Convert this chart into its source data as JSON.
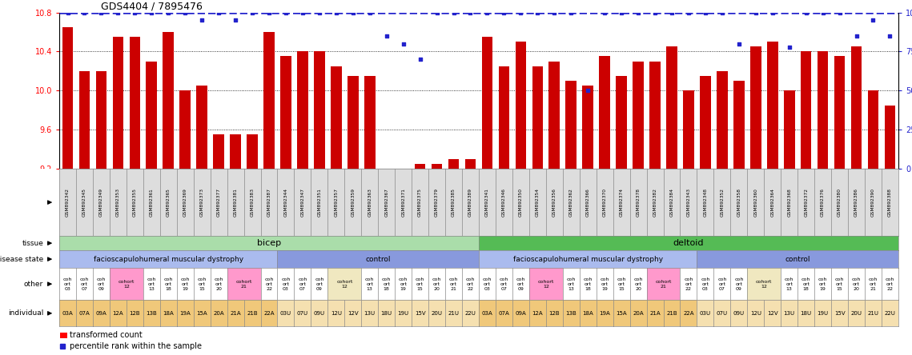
{
  "title": "GDS4404 / 7895476",
  "n_samples": 50,
  "n_bicep_fshd": 13,
  "n_bicep_ctrl": 12,
  "n_deltoid_fshd": 13,
  "n_deltoid_ctrl": 12,
  "bar_heights": [
    10.65,
    10.2,
    10.2,
    10.55,
    10.55,
    10.3,
    10.6,
    10.0,
    10.05,
    9.55,
    9.55,
    9.55,
    10.6,
    10.35,
    10.4,
    10.4,
    10.25,
    10.15,
    10.15,
    9.15,
    9.15,
    9.25,
    9.25,
    9.3,
    9.3,
    10.55,
    10.25,
    10.5,
    10.25,
    10.3,
    10.1,
    10.05,
    10.35,
    10.15,
    10.3,
    10.3,
    10.45,
    10.0,
    10.15,
    10.2,
    10.1,
    10.45,
    10.5,
    10.0,
    10.4,
    10.4,
    10.35,
    10.45,
    10.0,
    9.85
  ],
  "percentile": [
    100,
    100,
    100,
    100,
    100,
    100,
    100,
    100,
    95,
    100,
    95,
    100,
    100,
    100,
    100,
    100,
    100,
    100,
    100,
    85,
    80,
    70,
    100,
    100,
    100,
    100,
    100,
    100,
    100,
    100,
    100,
    50,
    100,
    100,
    100,
    100,
    100,
    100,
    100,
    100,
    80,
    100,
    100,
    78,
    100,
    100,
    100,
    85,
    95,
    85
  ],
  "gsm_labels": [
    "GSM892342",
    "GSM892345",
    "GSM892349",
    "GSM892353",
    "GSM892355",
    "GSM892361",
    "GSM892365",
    "GSM892369",
    "GSM892373",
    "GSM892377",
    "GSM892381",
    "GSM892383",
    "GSM892387",
    "GSM892344",
    "GSM892347",
    "GSM892351",
    "GSM892357",
    "GSM892359",
    "GSM892363",
    "GSM892367",
    "GSM892371",
    "GSM892375",
    "GSM892379",
    "GSM892385",
    "GSM892389",
    "GSM892341",
    "GSM892346",
    "GSM892350",
    "GSM892354",
    "GSM892356",
    "GSM892362",
    "GSM892366",
    "GSM892370",
    "GSM892374",
    "GSM892378",
    "GSM892382",
    "GSM892384",
    "GSM892343",
    "GSM892348",
    "GSM892352",
    "GSM892358",
    "GSM892360",
    "GSM892364",
    "GSM892368",
    "GSM892372",
    "GSM892376",
    "GSM892380",
    "GSM892386",
    "GSM892390",
    "GSM892388"
  ],
  "ymin": 9.2,
  "ymax": 10.8,
  "yticks_left": [
    9.2,
    9.6,
    10.0,
    10.4,
    10.8
  ],
  "yticks_right": [
    0,
    25,
    50,
    75,
    100
  ],
  "bar_color": "#cc0000",
  "dot_color": "#2222cc",
  "tissue_bicep_color": "#aaddaa",
  "tissue_deltoid_color": "#55bb55",
  "disease_fshd_color": "#aabbee",
  "disease_ctrl_color": "#8899dd",
  "cohort12_color": "#ff99cc",
  "cohort21_color": "#ff99cc",
  "other_color": "#ffffff",
  "indiv_fshd_color": "#f0c87a",
  "indiv_ctrl_color": "#f5e0b0",
  "cohort12_ctrl_color": "#f0e8c0",
  "indiv_bicep_fshd": [
    "03A",
    "07A",
    "09A",
    "12A",
    "12B",
    "13B",
    "18A",
    "19A",
    "15A",
    "20A",
    "21A",
    "21B",
    "22A"
  ],
  "indiv_bicep_ctrl": [
    "03U",
    "07U",
    "09U",
    "12U",
    "12V",
    "13U",
    "18U",
    "19U",
    "15V",
    "20U",
    "21U",
    "22U"
  ],
  "indiv_deltoid_fshd": [
    "03A",
    "07A",
    "09A",
    "12A",
    "12B",
    "13B",
    "18A",
    "19A",
    "15A",
    "20A",
    "21A",
    "21B",
    "22A"
  ],
  "indiv_deltoid_ctrl": [
    "03U",
    "07U",
    "09U",
    "12U",
    "12V",
    "13U",
    "18U",
    "19U",
    "15V",
    "20U",
    "21U",
    "22U"
  ],
  "cohort_bicep_fshd": [
    [
      1,
      "#ffffff",
      "coh\nort\n03"
    ],
    [
      1,
      "#ffffff",
      "coh\nort\n07"
    ],
    [
      1,
      "#ffffff",
      "coh\nort\n09"
    ],
    [
      2,
      "#ff99cc",
      "cohort\n12"
    ],
    [
      1,
      "#ffffff",
      "coh\nort\n13"
    ],
    [
      1,
      "#ffffff",
      "coh\nort\n18"
    ],
    [
      1,
      "#ffffff",
      "coh\nort\n19"
    ],
    [
      1,
      "#ffffff",
      "coh\nort\n15"
    ],
    [
      1,
      "#ffffff",
      "coh\nort\n20"
    ],
    [
      2,
      "#ff99cc",
      "cohort\n21"
    ],
    [
      1,
      "#ffffff",
      "coh\nort\n22"
    ]
  ],
  "cohort_bicep_ctrl": [
    [
      1,
      "#ffffff",
      "coh\nort\n03"
    ],
    [
      1,
      "#ffffff",
      "coh\nort\n07"
    ],
    [
      1,
      "#ffffff",
      "coh\nort\n09"
    ],
    [
      2,
      "#f0e8c0",
      "cohort\n12"
    ],
    [
      1,
      "#ffffff",
      "coh\nort\n13"
    ],
    [
      1,
      "#ffffff",
      "coh\nort\n18"
    ],
    [
      1,
      "#ffffff",
      "coh\nort\n19"
    ],
    [
      1,
      "#ffffff",
      "coh\nort\n15"
    ],
    [
      1,
      "#ffffff",
      "coh\nort\n20"
    ],
    [
      1,
      "#ffffff",
      "coh\nort\n21"
    ],
    [
      1,
      "#ffffff",
      "coh\nort\n22"
    ]
  ],
  "cohort_deltoid_fshd": [
    [
      1,
      "#ffffff",
      "coh\nort\n03"
    ],
    [
      1,
      "#ffffff",
      "coh\nort\n07"
    ],
    [
      1,
      "#ffffff",
      "coh\nort\n09"
    ],
    [
      2,
      "#ff99cc",
      "cohort\n12"
    ],
    [
      1,
      "#ffffff",
      "coh\nort\n13"
    ],
    [
      1,
      "#ffffff",
      "coh\nort\n18"
    ],
    [
      1,
      "#ffffff",
      "coh\nort\n19"
    ],
    [
      1,
      "#ffffff",
      "coh\nort\n15"
    ],
    [
      1,
      "#ffffff",
      "coh\nort\n20"
    ],
    [
      2,
      "#ff99cc",
      "cohort\n21"
    ],
    [
      1,
      "#ffffff",
      "coh\nort\n22"
    ]
  ],
  "cohort_deltoid_ctrl": [
    [
      1,
      "#ffffff",
      "coh\nort\n03"
    ],
    [
      1,
      "#ffffff",
      "coh\nort\n07"
    ],
    [
      1,
      "#ffffff",
      "coh\nort\n09"
    ],
    [
      2,
      "#f0e8c0",
      "cohort\n12"
    ],
    [
      1,
      "#ffffff",
      "coh\nort\n13"
    ],
    [
      1,
      "#ffffff",
      "coh\nort\n18"
    ],
    [
      1,
      "#ffffff",
      "coh\nort\n19"
    ],
    [
      1,
      "#ffffff",
      "coh\nort\n15"
    ],
    [
      1,
      "#ffffff",
      "coh\nort\n20"
    ],
    [
      1,
      "#ffffff",
      "coh\nort\n21"
    ],
    [
      1,
      "#ffffff",
      "coh\nort\n22"
    ]
  ]
}
